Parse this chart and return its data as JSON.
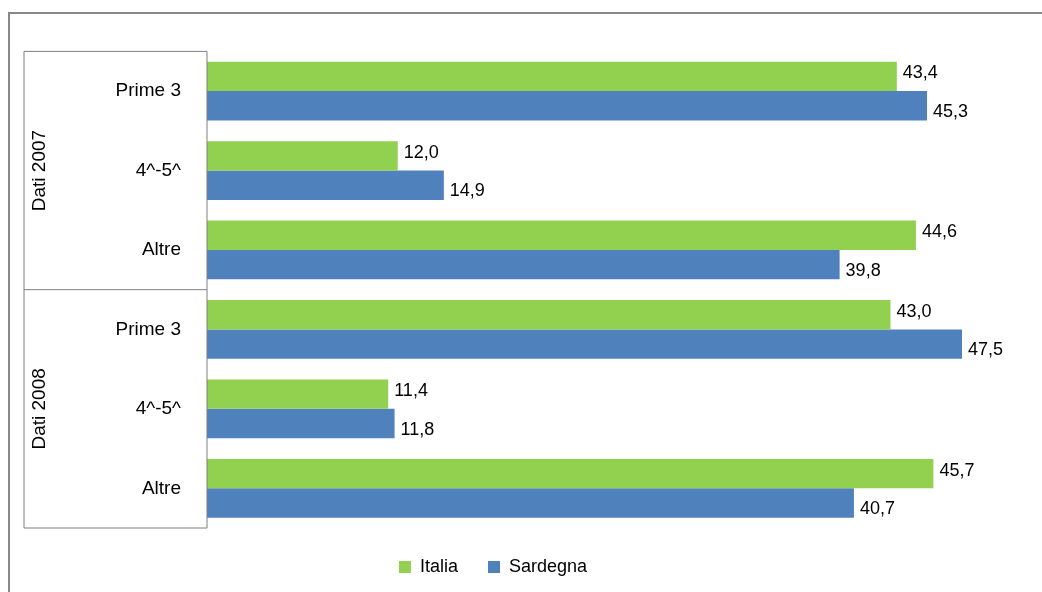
{
  "chart_data": {
    "type": "bar",
    "orientation": "horizontal",
    "categories": [
      "Prime 3",
      "4^-5^",
      "Altre",
      "Prime 3",
      "4^-5^",
      "Altre"
    ],
    "series": [
      {
        "name": "Italia",
        "color": "#92d050",
        "values": [
          43.4,
          12.0,
          44.6,
          43.0,
          11.4,
          45.7
        ],
        "value_labels": [
          "43,4",
          "12,0",
          "44,6",
          "43,0",
          "11,4",
          "45,7"
        ]
      },
      {
        "name": "Sardegna",
        "color": "#4f81bd",
        "values": [
          45.3,
          14.9,
          39.8,
          47.5,
          11.8,
          40.7
        ],
        "value_labels": [
          "45,3",
          "14,9",
          "39,8",
          "47,5",
          "11,8",
          "40,7"
        ]
      }
    ],
    "annotations": [
      "Dati 2007",
      "Dati 2008"
    ],
    "legend": "bottom",
    "grid": false
  }
}
